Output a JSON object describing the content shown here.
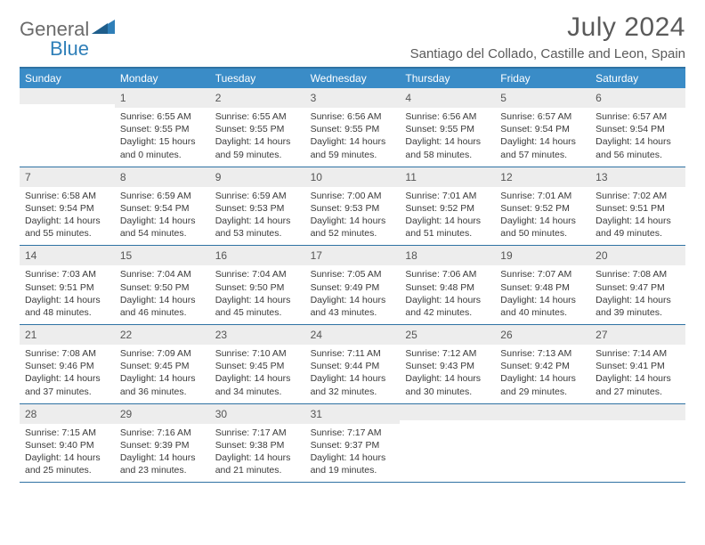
{
  "brand": {
    "part1": "General",
    "part2": "Blue"
  },
  "title": "July 2024",
  "location": "Santiago del Collado, Castille and Leon, Spain",
  "colors": {
    "header_bg": "#3a8cc7",
    "header_border": "#2f72a3",
    "daynum_bg": "#ededed",
    "text": "#3a3a3a",
    "brand_gray": "#6b6b6b",
    "brand_blue": "#2f7fb8"
  },
  "days_of_week": [
    "Sunday",
    "Monday",
    "Tuesday",
    "Wednesday",
    "Thursday",
    "Friday",
    "Saturday"
  ],
  "weeks": [
    [
      null,
      {
        "n": "1",
        "sunrise": "6:55 AM",
        "sunset": "9:55 PM",
        "daylight": "15 hours and 0 minutes."
      },
      {
        "n": "2",
        "sunrise": "6:55 AM",
        "sunset": "9:55 PM",
        "daylight": "14 hours and 59 minutes."
      },
      {
        "n": "3",
        "sunrise": "6:56 AM",
        "sunset": "9:55 PM",
        "daylight": "14 hours and 59 minutes."
      },
      {
        "n": "4",
        "sunrise": "6:56 AM",
        "sunset": "9:55 PM",
        "daylight": "14 hours and 58 minutes."
      },
      {
        "n": "5",
        "sunrise": "6:57 AM",
        "sunset": "9:54 PM",
        "daylight": "14 hours and 57 minutes."
      },
      {
        "n": "6",
        "sunrise": "6:57 AM",
        "sunset": "9:54 PM",
        "daylight": "14 hours and 56 minutes."
      }
    ],
    [
      {
        "n": "7",
        "sunrise": "6:58 AM",
        "sunset": "9:54 PM",
        "daylight": "14 hours and 55 minutes."
      },
      {
        "n": "8",
        "sunrise": "6:59 AM",
        "sunset": "9:54 PM",
        "daylight": "14 hours and 54 minutes."
      },
      {
        "n": "9",
        "sunrise": "6:59 AM",
        "sunset": "9:53 PM",
        "daylight": "14 hours and 53 minutes."
      },
      {
        "n": "10",
        "sunrise": "7:00 AM",
        "sunset": "9:53 PM",
        "daylight": "14 hours and 52 minutes."
      },
      {
        "n": "11",
        "sunrise": "7:01 AM",
        "sunset": "9:52 PM",
        "daylight": "14 hours and 51 minutes."
      },
      {
        "n": "12",
        "sunrise": "7:01 AM",
        "sunset": "9:52 PM",
        "daylight": "14 hours and 50 minutes."
      },
      {
        "n": "13",
        "sunrise": "7:02 AM",
        "sunset": "9:51 PM",
        "daylight": "14 hours and 49 minutes."
      }
    ],
    [
      {
        "n": "14",
        "sunrise": "7:03 AM",
        "sunset": "9:51 PM",
        "daylight": "14 hours and 48 minutes."
      },
      {
        "n": "15",
        "sunrise": "7:04 AM",
        "sunset": "9:50 PM",
        "daylight": "14 hours and 46 minutes."
      },
      {
        "n": "16",
        "sunrise": "7:04 AM",
        "sunset": "9:50 PM",
        "daylight": "14 hours and 45 minutes."
      },
      {
        "n": "17",
        "sunrise": "7:05 AM",
        "sunset": "9:49 PM",
        "daylight": "14 hours and 43 minutes."
      },
      {
        "n": "18",
        "sunrise": "7:06 AM",
        "sunset": "9:48 PM",
        "daylight": "14 hours and 42 minutes."
      },
      {
        "n": "19",
        "sunrise": "7:07 AM",
        "sunset": "9:48 PM",
        "daylight": "14 hours and 40 minutes."
      },
      {
        "n": "20",
        "sunrise": "7:08 AM",
        "sunset": "9:47 PM",
        "daylight": "14 hours and 39 minutes."
      }
    ],
    [
      {
        "n": "21",
        "sunrise": "7:08 AM",
        "sunset": "9:46 PM",
        "daylight": "14 hours and 37 minutes."
      },
      {
        "n": "22",
        "sunrise": "7:09 AM",
        "sunset": "9:45 PM",
        "daylight": "14 hours and 36 minutes."
      },
      {
        "n": "23",
        "sunrise": "7:10 AM",
        "sunset": "9:45 PM",
        "daylight": "14 hours and 34 minutes."
      },
      {
        "n": "24",
        "sunrise": "7:11 AM",
        "sunset": "9:44 PM",
        "daylight": "14 hours and 32 minutes."
      },
      {
        "n": "25",
        "sunrise": "7:12 AM",
        "sunset": "9:43 PM",
        "daylight": "14 hours and 30 minutes."
      },
      {
        "n": "26",
        "sunrise": "7:13 AM",
        "sunset": "9:42 PM",
        "daylight": "14 hours and 29 minutes."
      },
      {
        "n": "27",
        "sunrise": "7:14 AM",
        "sunset": "9:41 PM",
        "daylight": "14 hours and 27 minutes."
      }
    ],
    [
      {
        "n": "28",
        "sunrise": "7:15 AM",
        "sunset": "9:40 PM",
        "daylight": "14 hours and 25 minutes."
      },
      {
        "n": "29",
        "sunrise": "7:16 AM",
        "sunset": "9:39 PM",
        "daylight": "14 hours and 23 minutes."
      },
      {
        "n": "30",
        "sunrise": "7:17 AM",
        "sunset": "9:38 PM",
        "daylight": "14 hours and 21 minutes."
      },
      {
        "n": "31",
        "sunrise": "7:17 AM",
        "sunset": "9:37 PM",
        "daylight": "14 hours and 19 minutes."
      },
      null,
      null,
      null
    ]
  ],
  "labels": {
    "sunrise": "Sunrise: ",
    "sunset": "Sunset: ",
    "daylight": "Daylight: "
  }
}
